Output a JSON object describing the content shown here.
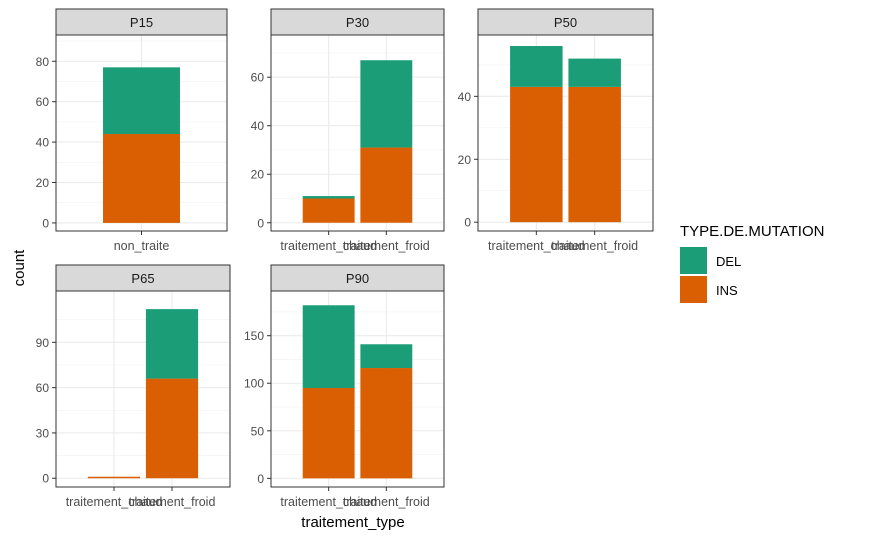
{
  "chart_data": {
    "type": "bar",
    "stacked": true,
    "faceted": true,
    "xlabel": "traitement_type",
    "ylabel": "count",
    "grid": true,
    "legend": {
      "title": "TYPE.DE.MUTATION",
      "position": "right",
      "entries": [
        {
          "name": "DEL",
          "color": "#1b9e77"
        },
        {
          "name": "INS",
          "color": "#d95f02"
        }
      ]
    },
    "panels": [
      {
        "title": "P15",
        "categories": [
          "non_traite"
        ],
        "series": [
          {
            "name": "INS",
            "values": [
              44
            ]
          },
          {
            "name": "DEL",
            "values": [
              33
            ]
          }
        ],
        "yticks": [
          0,
          20,
          40,
          60,
          80
        ],
        "ylim": [
          -4,
          93
        ]
      },
      {
        "title": "P30",
        "categories": [
          "traitement_chaud",
          "traitement_froid"
        ],
        "series": [
          {
            "name": "INS",
            "values": [
              10,
              31
            ]
          },
          {
            "name": "DEL",
            "values": [
              1,
              36
            ]
          }
        ],
        "yticks": [
          0,
          20,
          40,
          60
        ],
        "ylim": [
          -3.4,
          77.4
        ]
      },
      {
        "title": "P50",
        "categories": [
          "traitement_chaud",
          "traitement_froid"
        ],
        "series": [
          {
            "name": "INS",
            "values": [
              43,
              43
            ]
          },
          {
            "name": "DEL",
            "values": [
              13,
              9
            ]
          }
        ],
        "yticks": [
          0,
          20,
          40
        ],
        "ylim": [
          -2.8,
          59.5
        ]
      },
      {
        "title": "P65",
        "categories": [
          "traitement_chaud",
          "traitement_froid"
        ],
        "series": [
          {
            "name": "INS",
            "values": [
              1,
              66
            ]
          },
          {
            "name": "DEL",
            "values": [
              0,
              46
            ]
          }
        ],
        "yticks": [
          0,
          30,
          60,
          90
        ],
        "ylim": [
          -5.8,
          124
        ]
      },
      {
        "title": "P90",
        "categories": [
          "traitement_chaud",
          "traitement_froid"
        ],
        "series": [
          {
            "name": "INS",
            "values": [
              95,
              116
            ]
          },
          {
            "name": "DEL",
            "values": [
              87,
              25
            ]
          }
        ],
        "yticks": [
          0,
          50,
          100,
          150
        ],
        "ylim": [
          -9.1,
          197
        ]
      }
    ]
  }
}
